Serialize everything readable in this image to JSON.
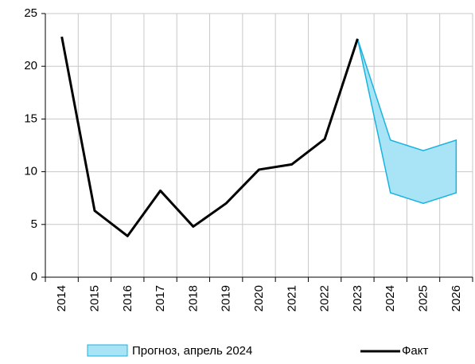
{
  "chart_data": {
    "type": "line",
    "categories": [
      "2014",
      "2015",
      "2016",
      "2017",
      "2018",
      "2019",
      "2020",
      "2021",
      "2022",
      "2023",
      "2024",
      "2025",
      "2026"
    ],
    "series": [
      {
        "name": "Факт",
        "color": "#000000",
        "values": [
          22.8,
          6.3,
          3.9,
          8.2,
          4.8,
          7.0,
          10.2,
          10.7,
          13.1,
          22.6,
          null,
          null,
          null
        ]
      }
    ],
    "band": {
      "name": "Прогноз, апрель 2024",
      "color": "#a8e4f6",
      "edge_color": "#1ab3de",
      "upper": [
        null,
        null,
        null,
        null,
        null,
        null,
        null,
        null,
        null,
        22.6,
        13,
        12,
        13
      ],
      "lower": [
        null,
        null,
        null,
        null,
        null,
        null,
        null,
        null,
        null,
        22.6,
        8,
        7,
        8
      ]
    },
    "ylim": [
      0,
      25
    ],
    "yticks": [
      0,
      5,
      10,
      15,
      20,
      25
    ],
    "grid": true
  }
}
